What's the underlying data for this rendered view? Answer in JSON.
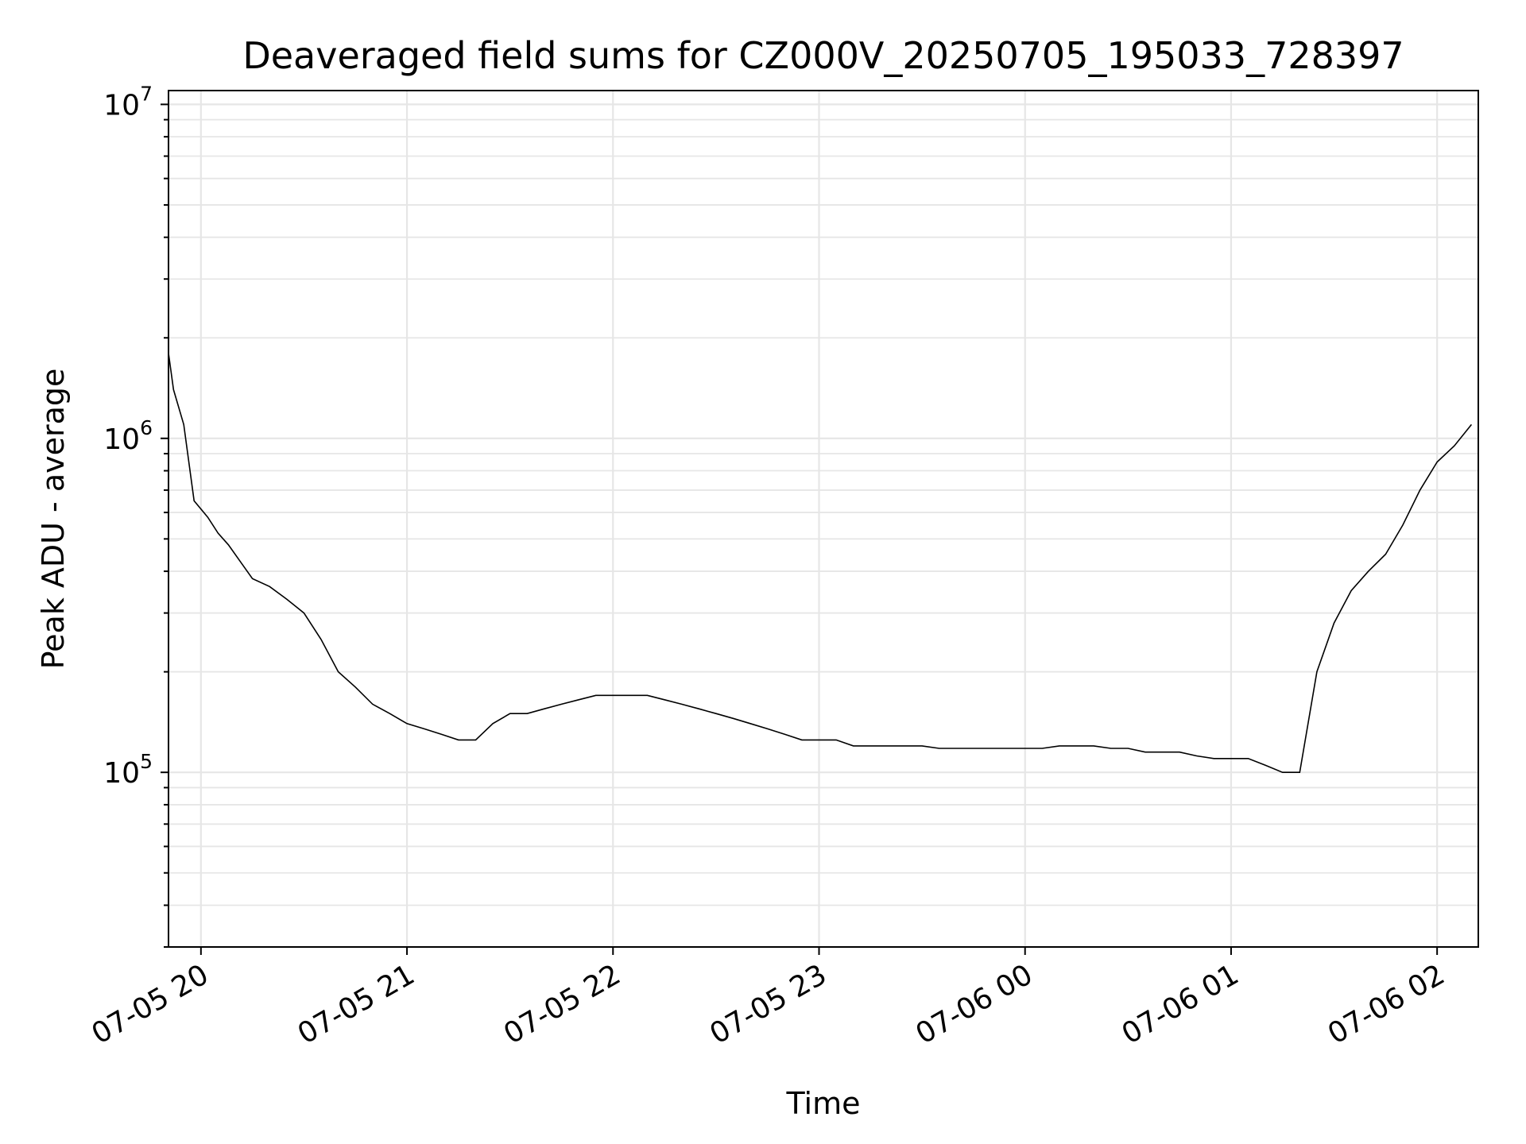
{
  "chart_data": {
    "type": "line",
    "title": "Deaveraged field sums for CZ000V_20250705_195033_728397",
    "xlabel": "Time",
    "ylabel": "Peak ADU - average",
    "y_scale": "log",
    "ylim": [
      30000,
      11000000
    ],
    "xlim": [
      "2025-07-05 19:50:33",
      "2025-07-06 02:12:00"
    ],
    "grid": true,
    "line_color": "#000000",
    "grid_color": "#e6e6e6",
    "y_ticks": [
      {
        "value": 100000,
        "base": "10",
        "exp": "5"
      },
      {
        "value": 1000000,
        "base": "10",
        "exp": "6"
      },
      {
        "value": 10000000,
        "base": "10",
        "exp": "7"
      }
    ],
    "x_ticks": [
      {
        "value": "2025-07-05 20:00",
        "label": "07-05 20"
      },
      {
        "value": "2025-07-05 21:00",
        "label": "07-05 21"
      },
      {
        "value": "2025-07-05 22:00",
        "label": "07-05 22"
      },
      {
        "value": "2025-07-05 23:00",
        "label": "07-05 23"
      },
      {
        "value": "2025-07-06 00:00",
        "label": "07-06 00"
      },
      {
        "value": "2025-07-06 01:00",
        "label": "07-06 01"
      },
      {
        "value": "2025-07-06 02:00",
        "label": "07-06 02"
      }
    ],
    "series": [
      {
        "x": [
          "2025-07-05 19:50:33",
          "2025-07-05 19:52",
          "2025-07-05 19:55",
          "2025-07-05 19:58",
          "2025-07-05 20:02",
          "2025-07-05 20:05",
          "2025-07-05 20:08",
          "2025-07-05 20:12",
          "2025-07-05 20:15",
          "2025-07-05 20:20",
          "2025-07-05 20:25",
          "2025-07-05 20:30",
          "2025-07-05 20:35",
          "2025-07-05 20:40",
          "2025-07-05 20:45",
          "2025-07-05 20:50",
          "2025-07-05 20:55",
          "2025-07-05 21:00",
          "2025-07-05 21:05",
          "2025-07-05 21:10",
          "2025-07-05 21:15",
          "2025-07-05 21:20",
          "2025-07-05 21:25",
          "2025-07-05 21:30",
          "2025-07-05 21:35",
          "2025-07-05 21:40",
          "2025-07-05 21:45",
          "2025-07-05 21:50",
          "2025-07-05 21:55",
          "2025-07-05 22:00",
          "2025-07-05 22:05",
          "2025-07-05 22:10",
          "2025-07-05 22:15",
          "2025-07-05 22:20",
          "2025-07-05 22:25",
          "2025-07-05 22:30",
          "2025-07-05 22:35",
          "2025-07-05 22:40",
          "2025-07-05 22:45",
          "2025-07-05 22:50",
          "2025-07-05 22:55",
          "2025-07-05 23:00",
          "2025-07-05 23:05",
          "2025-07-05 23:10",
          "2025-07-05 23:15",
          "2025-07-05 23:20",
          "2025-07-05 23:25",
          "2025-07-05 23:30",
          "2025-07-05 23:35",
          "2025-07-05 23:40",
          "2025-07-05 23:45",
          "2025-07-05 23:50",
          "2025-07-05 23:55",
          "2025-07-06 00:00",
          "2025-07-06 00:05",
          "2025-07-06 00:10",
          "2025-07-06 00:15",
          "2025-07-06 00:20",
          "2025-07-06 00:25",
          "2025-07-06 00:30",
          "2025-07-06 00:35",
          "2025-07-06 00:40",
          "2025-07-06 00:45",
          "2025-07-06 00:50",
          "2025-07-06 00:55",
          "2025-07-06 01:00",
          "2025-07-06 01:05",
          "2025-07-06 01:10",
          "2025-07-06 01:15",
          "2025-07-06 01:20",
          "2025-07-06 01:25",
          "2025-07-06 01:30",
          "2025-07-06 01:35",
          "2025-07-06 01:40",
          "2025-07-06 01:45",
          "2025-07-06 01:50",
          "2025-07-06 01:55",
          "2025-07-06 02:00",
          "2025-07-06 02:05",
          "2025-07-06 02:10"
        ],
        "values": [
          1800000,
          1400000,
          1100000,
          650000,
          580000,
          520000,
          480000,
          420000,
          380000,
          360000,
          330000,
          300000,
          250000,
          200000,
          180000,
          160000,
          150000,
          140000,
          135000,
          130000,
          125000,
          125000,
          140000,
          150000,
          150000,
          155000,
          160000,
          165000,
          170000,
          170000,
          170000,
          170000,
          165000,
          160000,
          155000,
          150000,
          145000,
          140000,
          135000,
          130000,
          125000,
          125000,
          125000,
          120000,
          120000,
          120000,
          120000,
          120000,
          118000,
          118000,
          118000,
          118000,
          118000,
          118000,
          118000,
          120000,
          120000,
          120000,
          118000,
          118000,
          115000,
          115000,
          115000,
          112000,
          110000,
          110000,
          110000,
          105000,
          100000,
          100000,
          200000,
          280000,
          350000,
          400000,
          450000,
          550000,
          700000,
          850000,
          950000,
          1100000
        ]
      }
    ]
  }
}
